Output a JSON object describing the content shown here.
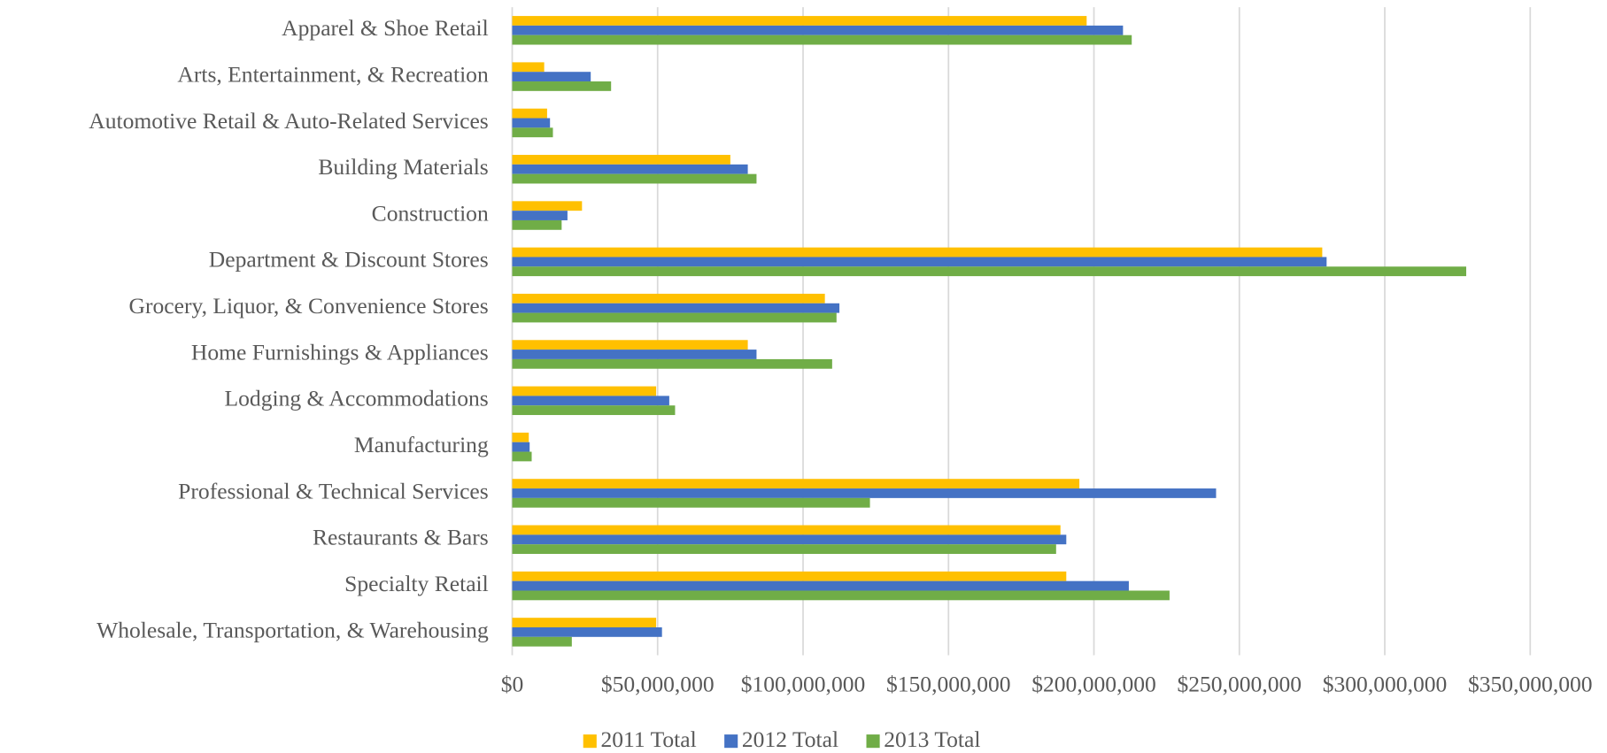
{
  "chart_data": {
    "type": "bar",
    "orientation": "horizontal",
    "categories": [
      "Apparel & Shoe Retail",
      "Arts, Entertainment, & Recreation",
      "Automotive Retail & Auto-Related Services",
      "Building Materials",
      "Construction",
      "Department & Discount Stores",
      "Grocery, Liquor, & Convenience Stores",
      "Home Furnishings & Appliances",
      "Lodging & Accommodations",
      "Manufacturing",
      "Professional & Technical Services",
      "Restaurants & Bars",
      "Specialty Retail",
      "Wholesale, Transportation, & Warehousing"
    ],
    "series": [
      {
        "name": "2011 Total",
        "color": "#ffc000",
        "values": [
          197500000,
          11000000,
          12000000,
          75000000,
          24000000,
          278500000,
          107500000,
          81000000,
          49500000,
          5700000,
          195000000,
          188500000,
          190500000,
          49500000
        ]
      },
      {
        "name": "2012 Total",
        "color": "#4472c4",
        "values": [
          210000000,
          27000000,
          13000000,
          81000000,
          19000000,
          280000000,
          112500000,
          84000000,
          54000000,
          6000000,
          242000000,
          190500000,
          212000000,
          51500000
        ]
      },
      {
        "name": "2013 Total",
        "color": "#70ad47",
        "values": [
          213000000,
          34000000,
          14000000,
          84000000,
          17000000,
          328000000,
          111500000,
          110000000,
          56000000,
          6700000,
          123000000,
          187000000,
          226000000,
          20500000
        ]
      }
    ],
    "xlim": [
      0,
      350000000
    ],
    "xticks": [
      {
        "value": 0,
        "label": "$0"
      },
      {
        "value": 50000000,
        "label": "$50,000,000"
      },
      {
        "value": 100000000,
        "label": "$100,000,000"
      },
      {
        "value": 150000000,
        "label": "$150,000,000"
      },
      {
        "value": 200000000,
        "label": "$200,000,000"
      },
      {
        "value": 250000000,
        "label": "$250,000,000"
      },
      {
        "value": 300000000,
        "label": "$300,000,000"
      },
      {
        "value": 350000000,
        "label": "$350,000,000"
      }
    ],
    "grid": true,
    "legend": "bottom"
  }
}
